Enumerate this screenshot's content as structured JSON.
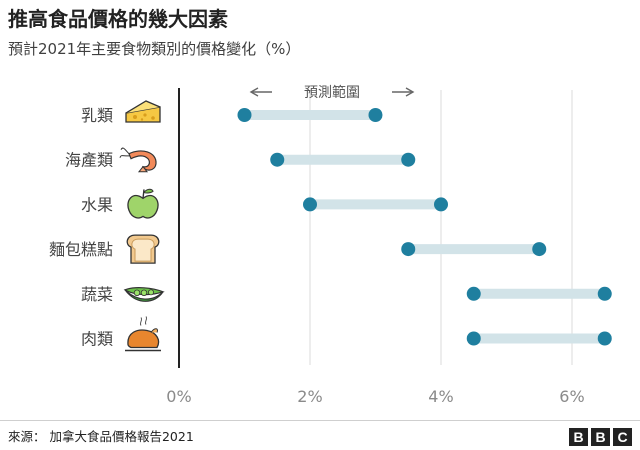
{
  "title": "推高食品價格的幾大因素",
  "subtitle": "預計2021年主要食物類別的價格變化（%）",
  "source": "來源：  加拿大食品價格報告2021",
  "brand": [
    "B",
    "B",
    "C"
  ],
  "colors": {
    "dot": "#1f7f9f",
    "bar": "#d2e3e8",
    "grid": "#e3e3e3",
    "axis": "#222222",
    "tick": "#8a8a8a",
    "label": "#444444"
  },
  "chart_data": {
    "type": "range",
    "title": "推高食品價格的幾大因素",
    "subtitle": "預計2021年主要食物類別的價格變化（%）",
    "xlim": [
      0,
      7
    ],
    "xticks": [
      0,
      2,
      4,
      6
    ],
    "xtick_labels": [
      "0%",
      "2%",
      "4%",
      "6%"
    ],
    "annotation": "預測範圍",
    "categories": [
      {
        "name": "乳類",
        "icon": "cheese-icon",
        "low": 1.0,
        "high": 3.0
      },
      {
        "name": "海產類",
        "icon": "shrimp-icon",
        "low": 1.5,
        "high": 3.5
      },
      {
        "name": "水果",
        "icon": "apple-icon",
        "low": 2.0,
        "high": 4.0
      },
      {
        "name": "麵包糕點",
        "icon": "bread-icon",
        "low": 3.5,
        "high": 5.5
      },
      {
        "name": "蔬菜",
        "icon": "peapod-icon",
        "low": 4.5,
        "high": 6.5
      },
      {
        "name": "肉類",
        "icon": "roast-chicken-icon",
        "low": 4.5,
        "high": 6.5
      }
    ]
  }
}
